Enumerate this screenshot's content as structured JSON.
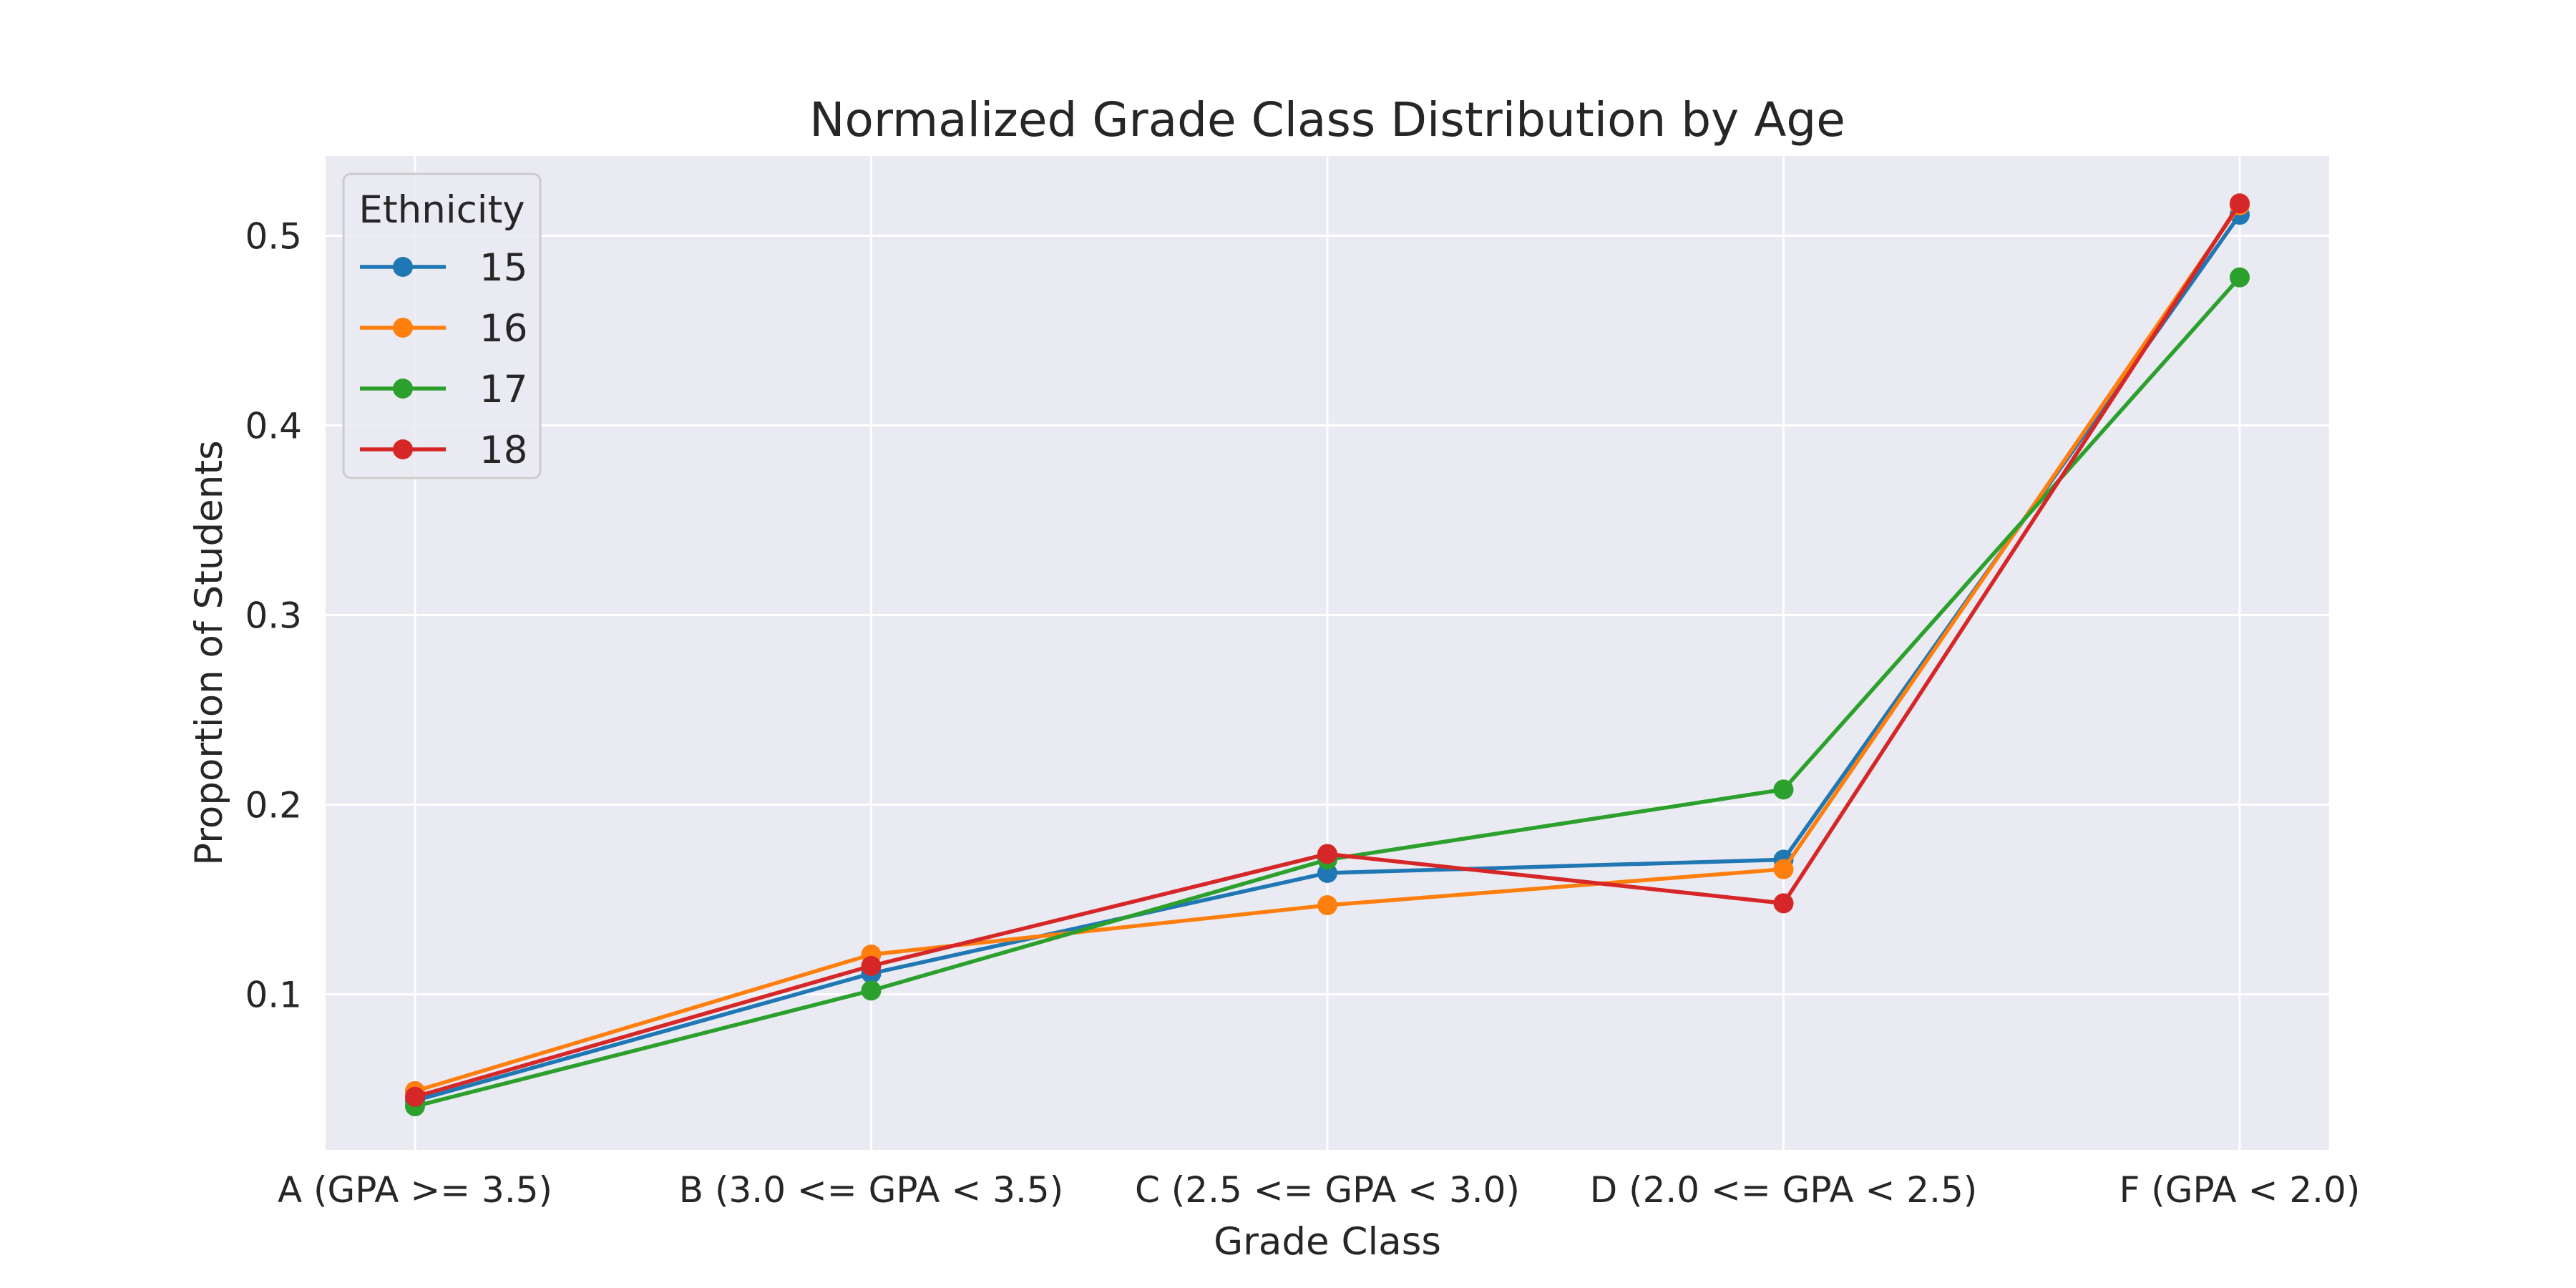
{
  "chart_data": {
    "type": "line",
    "title": "Normalized Grade Class Distribution by Age",
    "xlabel": "Grade Class",
    "ylabel": "Proportion of Students",
    "categories": [
      "A (GPA >= 3.5)",
      "B (3.0 <= GPA < 3.5)",
      "C (2.5 <= GPA < 3.0)",
      "D (2.0 <= GPA < 2.5)",
      "F (GPA < 2.0)"
    ],
    "ylim": [
      0.018,
      0.542
    ],
    "yticks": [
      0.1,
      0.2,
      0.3,
      0.4,
      0.5
    ],
    "ytick_labels": [
      "0.1",
      "0.2",
      "0.3",
      "0.4",
      "0.5"
    ],
    "grid": true,
    "background": "#eaeaf2",
    "grid_color": "#ffffff",
    "text_color": "#262626",
    "legend": {
      "title": "Ethnicity",
      "placement": "top-left"
    },
    "series": [
      {
        "name": "15",
        "color": "#1f77b4",
        "values": [
          0.044,
          0.111,
          0.164,
          0.171,
          0.511
        ]
      },
      {
        "name": "16",
        "color": "#ff7f0e",
        "values": [
          0.049,
          0.121,
          0.147,
          0.166,
          0.516
        ]
      },
      {
        "name": "17",
        "color": "#2ca02c",
        "values": [
          0.041,
          0.102,
          0.171,
          0.208,
          0.478
        ]
      },
      {
        "name": "18",
        "color": "#d62728",
        "values": [
          0.046,
          0.115,
          0.174,
          0.148,
          0.517
        ]
      }
    ]
  }
}
